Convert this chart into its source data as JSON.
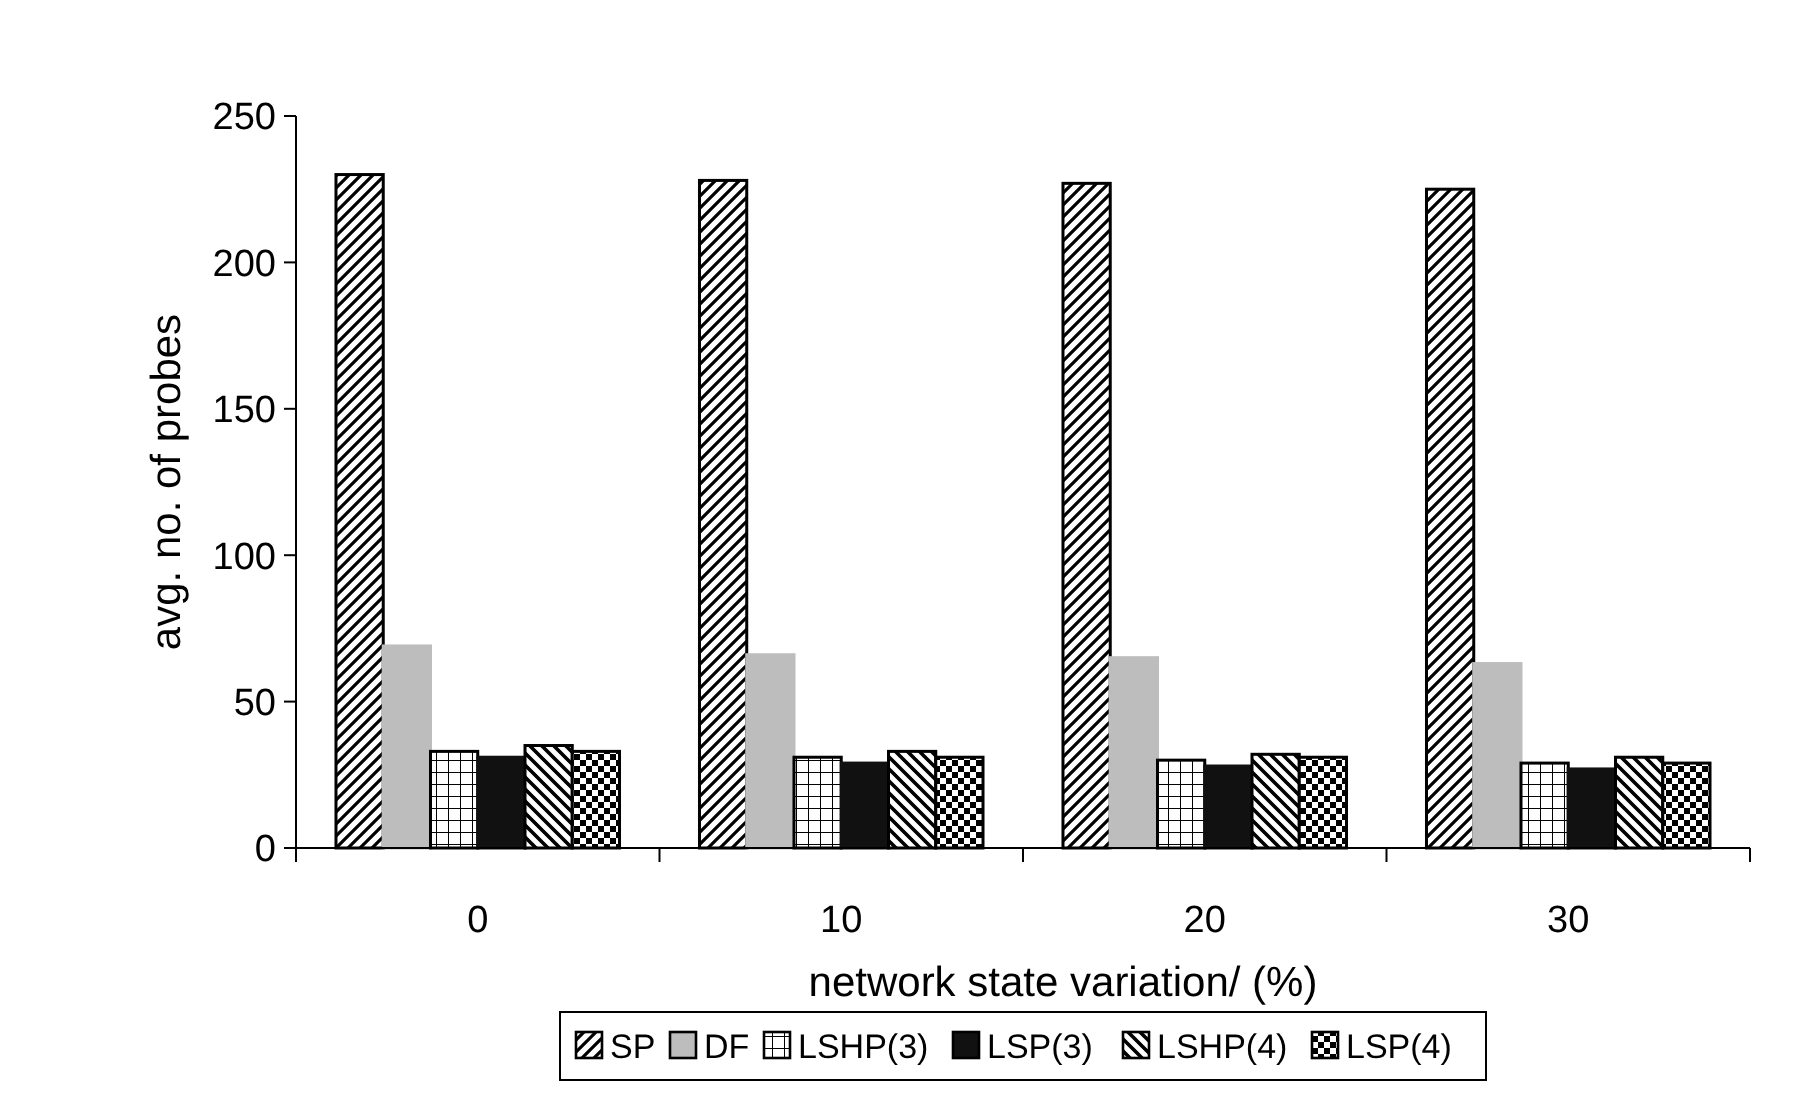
{
  "chart_data": {
    "type": "bar",
    "xlabel": "network state variation/ (%)",
    "ylabel": "avg. no. of probes",
    "categories": [
      "0",
      "10",
      "20",
      "30"
    ],
    "series": [
      {
        "name": "SP",
        "color": "#000000",
        "values": [
          230,
          228,
          227,
          225
        ]
      },
      {
        "name": "DF",
        "color": "#bdbdbd",
        "values": [
          69,
          66,
          65,
          63
        ]
      },
      {
        "name": "LSHP(3)",
        "color": "#000000",
        "values": [
          33,
          31,
          30,
          29
        ]
      },
      {
        "name": "LSP(3)",
        "color": "#111111",
        "values": [
          31,
          29,
          28,
          27
        ]
      },
      {
        "name": "LSHP(4)",
        "color": "#000000",
        "values": [
          35,
          33,
          32,
          31
        ]
      },
      {
        "name": "LSP(4)",
        "color": "#000000",
        "values": [
          33,
          31,
          31,
          29
        ]
      }
    ],
    "ylim": [
      0,
      250
    ],
    "yticks": [
      0,
      50,
      100,
      150,
      200,
      250
    ],
    "grid": false,
    "legend": "bottom"
  }
}
